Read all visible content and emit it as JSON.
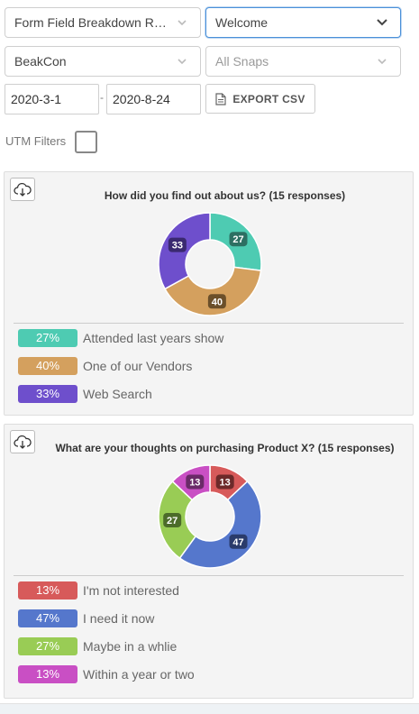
{
  "filters": {
    "report_select": "Form Field Breakdown Re...",
    "snap_select": "Welcome",
    "company_select": "BeakCon",
    "snaps_filter_placeholder": "All Snaps",
    "start_date": "2020-3-1",
    "date_separator": "-",
    "end_date": "2020-8-24",
    "export_label": "EXPORT CSV",
    "utm_label": "UTM Filters"
  },
  "charts": [
    {
      "title": "How did you find out about us? (15 responses)",
      "slices": [
        {
          "label": "Attended last years show",
          "percent": 27,
          "badge": "27%",
          "value_label": "27",
          "color": "#4ecbb2",
          "label_color": "#2d6f62"
        },
        {
          "label": "One of our Vendors",
          "percent": 40,
          "badge": "40%",
          "value_label": "40",
          "color": "#d4a05e",
          "label_color": "#6b4f2a"
        },
        {
          "label": "Web Search",
          "percent": 33,
          "badge": "33%",
          "value_label": "33",
          "color": "#6e4fcc",
          "label_color": "#3a2970"
        }
      ]
    },
    {
      "title": "What are your thoughts on purchasing Product X? (15 responses)",
      "slices": [
        {
          "label": "I'm not interested",
          "percent": 13,
          "badge": "13%",
          "value_label": "13",
          "color": "#d75a5a",
          "label_color": "#6d2a2a"
        },
        {
          "label": "I need it now",
          "percent": 47,
          "badge": "47%",
          "value_label": "47",
          "color": "#5577cc",
          "label_color": "#2a3b6b"
        },
        {
          "label": "Maybe in a whlie",
          "percent": 27,
          "badge": "27%",
          "value_label": "27",
          "color": "#99cc55",
          "label_color": "#4c6b2a"
        },
        {
          "label": "Within a year or two",
          "percent": 13,
          "badge": "13%",
          "value_label": "13",
          "color": "#c94fc4",
          "label_color": "#6a2a68"
        }
      ]
    }
  ],
  "icons": {
    "dropdown": "chevron-down-icon",
    "export": "document-icon",
    "download": "cloud-download-icon"
  }
}
